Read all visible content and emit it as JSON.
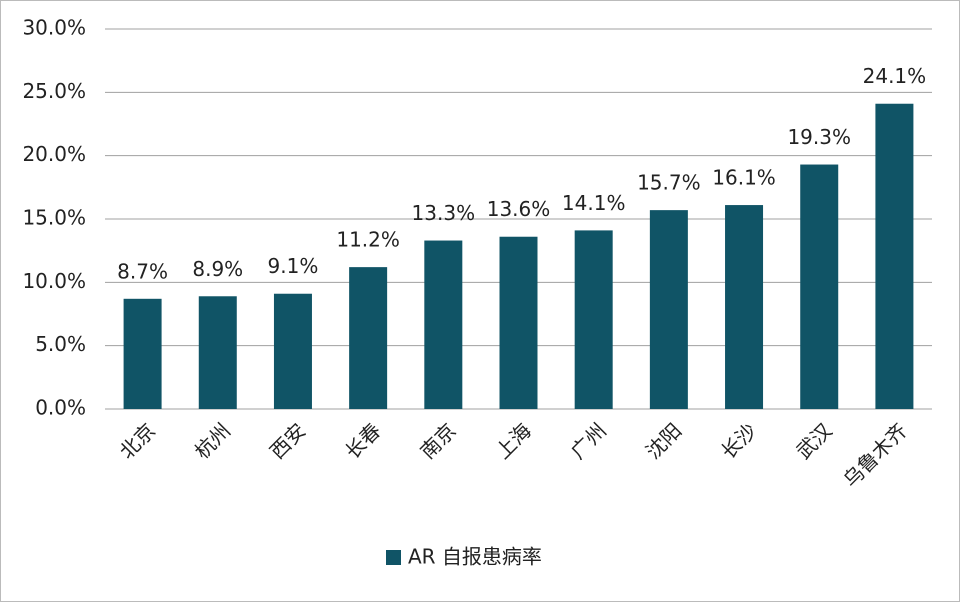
{
  "chart_data": {
    "type": "bar",
    "categories": [
      "北京",
      "杭州",
      "西安",
      "长春",
      "南京",
      "上海",
      "广州",
      "沈阳",
      "长沙",
      "武汉",
      "乌鲁木齐"
    ],
    "series": [
      {
        "name": "AR 自报患病率",
        "color": "#105466",
        "values": [
          8.7,
          8.9,
          9.1,
          11.2,
          13.3,
          13.6,
          14.1,
          15.7,
          16.1,
          19.3,
          24.1
        ],
        "value_labels": [
          "8.7%",
          "8.9%",
          "9.1%",
          "11.2%",
          "13.3%",
          "13.6%",
          "14.1%",
          "15.7%",
          "16.1%",
          "19.3%",
          "24.1%"
        ]
      }
    ],
    "ylim": [
      0,
      30
    ],
    "yticks": [
      {
        "value": 0,
        "label": "0.0%"
      },
      {
        "value": 5,
        "label": "5.0%"
      },
      {
        "value": 10,
        "label": "10.0%"
      },
      {
        "value": 15,
        "label": "15.0%"
      },
      {
        "value": 20,
        "label": "20.0%"
      },
      {
        "value": 25,
        "label": "25.0%"
      },
      {
        "value": 30,
        "label": "30.0%"
      }
    ],
    "grid": true,
    "legend": "bottom"
  }
}
